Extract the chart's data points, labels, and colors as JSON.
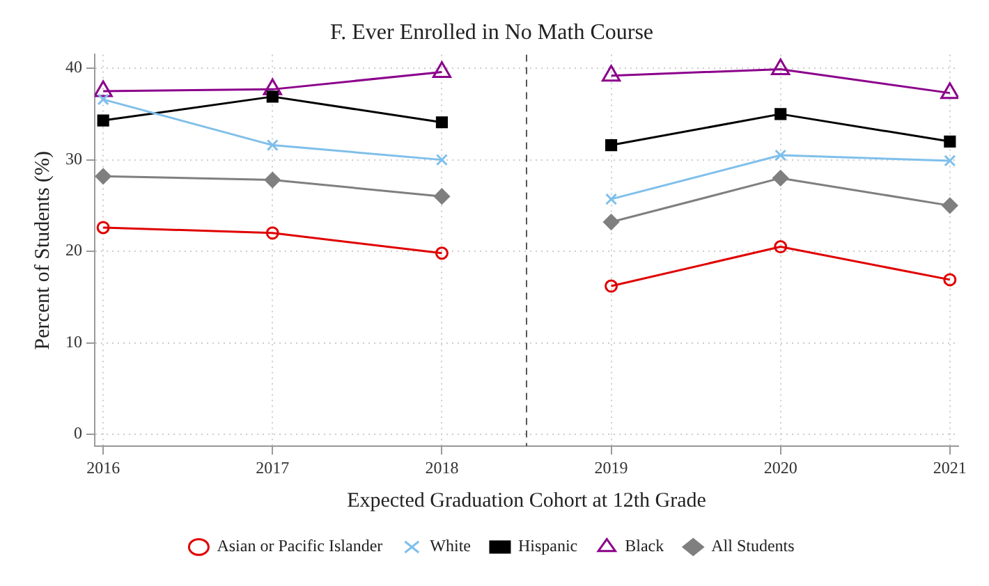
{
  "chart_data": {
    "type": "line",
    "title": "F. Ever Enrolled in No Math Course",
    "xlabel": "Expected Graduation Cohort at 12th Grade",
    "ylabel": "Percent of Students (%)",
    "x": [
      2016,
      2017,
      2018,
      2018.5,
      2019,
      2020,
      2021
    ],
    "series": [
      {
        "name": "Asian or Pacific Islander",
        "color": "#e00000",
        "marker": "circle",
        "values": [
          22.6,
          22.0,
          19.8,
          null,
          16.2,
          20.5,
          16.9
        ]
      },
      {
        "name": "White",
        "color": "#7fbfea",
        "marker": "cross",
        "values": [
          36.6,
          31.6,
          30.0,
          null,
          25.7,
          30.5,
          29.9
        ]
      },
      {
        "name": "Hispanic",
        "color": "#000000",
        "marker": "square",
        "values": [
          34.3,
          36.9,
          34.1,
          null,
          31.6,
          35.0,
          32.0
        ]
      },
      {
        "name": "Black",
        "color": "#8b008b",
        "marker": "triangle",
        "values": [
          37.5,
          37.7,
          39.6,
          null,
          39.2,
          39.9,
          37.3
        ]
      },
      {
        "name": "All Students",
        "color": "#7f7f7f",
        "marker": "diamond",
        "values": [
          28.2,
          27.8,
          26.0,
          null,
          23.2,
          28.0,
          25.0
        ]
      }
    ],
    "xlim": [
      2015.95,
      2021.05
    ],
    "xticks": [
      2016,
      2017,
      2018,
      2019,
      2020,
      2021
    ],
    "ylim": [
      -1.3,
      41.5
    ],
    "yticks": [
      0,
      10,
      20,
      30,
      40
    ],
    "ref_lines": [
      {
        "axis": "x",
        "value": 2018.5,
        "color": "#555555",
        "line_style": "dashed"
      }
    ],
    "grid": true,
    "legend": "bottom",
    "line_style": "solid"
  }
}
